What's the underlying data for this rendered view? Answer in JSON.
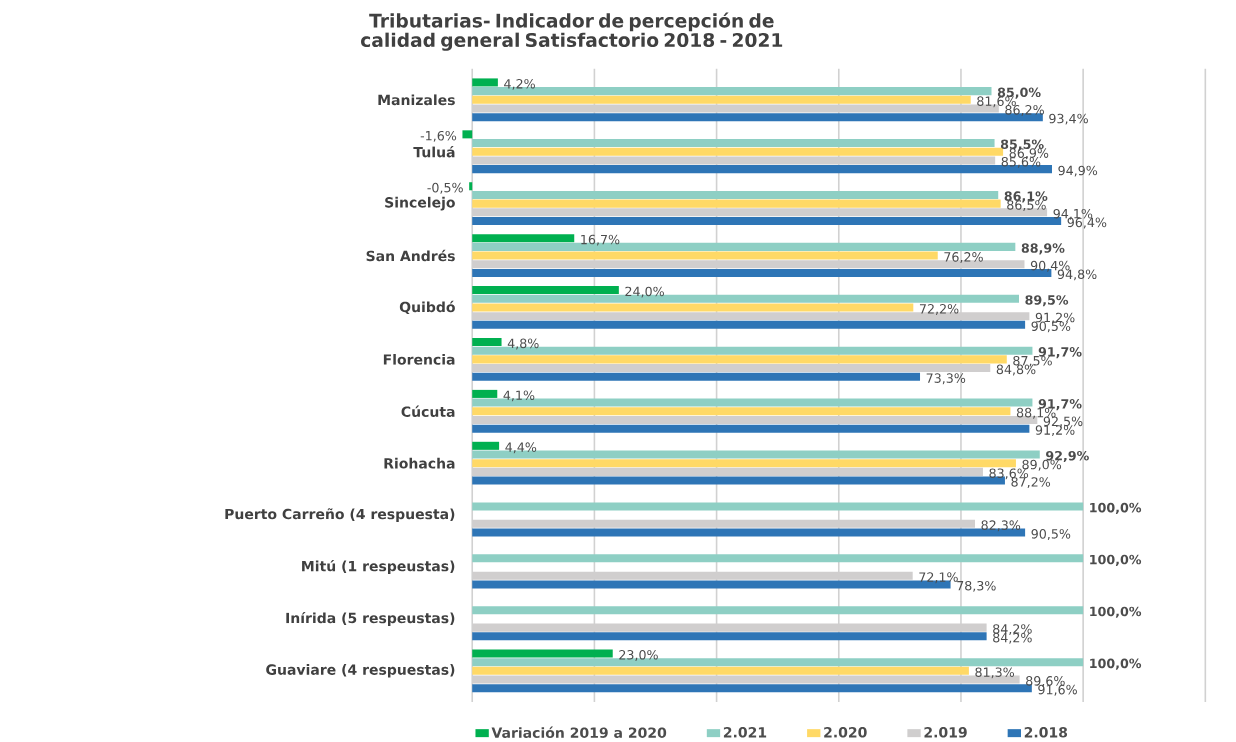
{
  "chart_data": {
    "type": "bar",
    "orientation": "horizontal",
    "title": "Tributarias- Indicador de percepción de calidad general Satisfactorio 2018 - 2021",
    "categories": [
      "Manizales",
      "Tuluá",
      "Sincelejo",
      "San Andrés",
      "Quibdó",
      "Florencia",
      "Cúcuta",
      "Riohacha",
      "Puerto Carreño (4 respuesta)",
      "Mitú (1 respeustas)",
      "Inírida (5 respeustas)",
      "Guaviare (4 respuestas)"
    ],
    "series": [
      {
        "name": "Variación 2019 a 2020",
        "color": "#00b050",
        "values": [
          4.2,
          -1.6,
          -0.5,
          16.7,
          24.0,
          4.8,
          4.1,
          4.4,
          null,
          null,
          null,
          23.0
        ],
        "value_labels": [
          "4,2%",
          "-1,6%",
          "-0,5%",
          "16,7%",
          "24,0%",
          "4,8%",
          "4,1%",
          "4,4%",
          null,
          null,
          null,
          "23,0%"
        ]
      },
      {
        "name": "2.021",
        "color": "#8ecfc4",
        "values": [
          85.0,
          85.5,
          86.1,
          88.9,
          89.5,
          91.7,
          91.7,
          92.9,
          100.0,
          100.0,
          100.0,
          100.0
        ],
        "value_labels": [
          "85,0%",
          "85,5%",
          "86,1%",
          "88,9%",
          "89,5%",
          "91,7%",
          "91,7%",
          "92,9%",
          "100,0%",
          "100,0%",
          "100,0%",
          "100,0%"
        ]
      },
      {
        "name": "2.020",
        "color": "#ffd966",
        "values": [
          81.6,
          86.9,
          86.5,
          76.2,
          72.2,
          87.5,
          88.1,
          89.0,
          null,
          null,
          null,
          81.3
        ],
        "value_labels": [
          "81,6%",
          "86,9%",
          "86,5%",
          "76,2%",
          "72,2%",
          "87,5%",
          "88,1%",
          "89,0%",
          null,
          null,
          null,
          "81,3%"
        ]
      },
      {
        "name": "2.019",
        "color": "#d0cece",
        "values": [
          86.2,
          85.6,
          94.1,
          90.4,
          91.2,
          84.8,
          92.5,
          83.6,
          82.3,
          72.1,
          84.2,
          89.6
        ],
        "value_labels": [
          "86,2%",
          "85,6%",
          "94,1%",
          "90,4%",
          "91,2%",
          "84,8%",
          "92,5%",
          "83,6%",
          "82,3%",
          "72,1%",
          "84,2%",
          "89,6%"
        ]
      },
      {
        "name": "2.018",
        "color": "#2e75b6",
        "values": [
          93.4,
          94.9,
          96.4,
          94.8,
          90.5,
          73.3,
          91.2,
          87.2,
          90.5,
          78.3,
          84.2,
          91.6
        ],
        "value_labels": [
          "93,4%",
          "94,9%",
          "96,4%",
          "94,8%",
          "90,5%",
          "73,3%",
          "91,2%",
          "87,2%",
          "90,5%",
          "78,3%",
          "84,2%",
          "91,6%"
        ]
      }
    ],
    "xlim": [
      -2,
      120
    ],
    "xticks": [
      {
        "value": 0,
        "label": null
      },
      {
        "value": 20,
        "label": null
      },
      {
        "value": 40,
        "label": null
      },
      {
        "value": 60,
        "label": null
      },
      {
        "value": 80,
        "label": null
      },
      {
        "value": 100,
        "label": null
      },
      {
        "value": 120,
        "label": null
      }
    ],
    "grid": "x",
    "legend": "bottom",
    "tick_labels": "y"
  }
}
